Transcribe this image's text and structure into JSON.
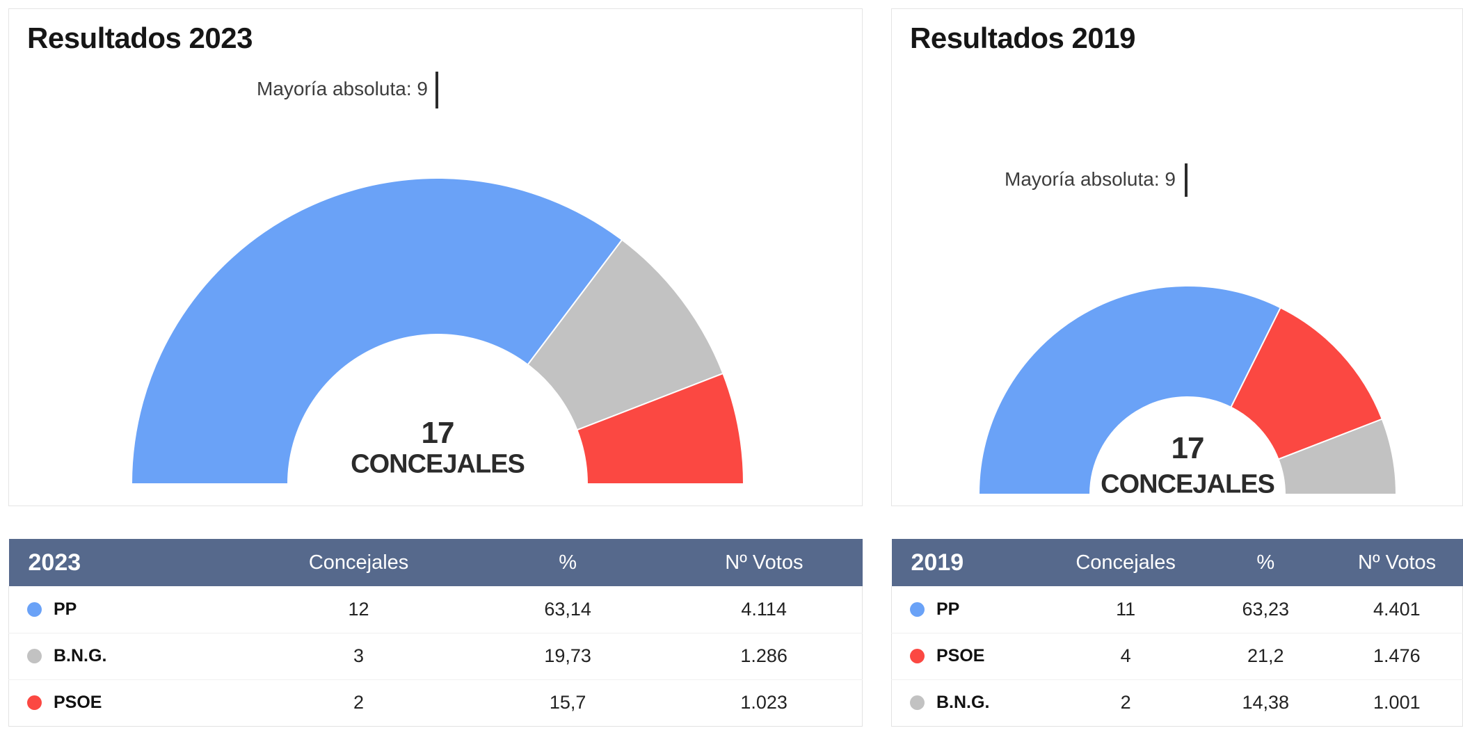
{
  "colors": {
    "pp": "#6aa2f7",
    "psoe": "#fb4842",
    "bng": "#c2c2c2",
    "table_header": "#56698c"
  },
  "panel_2023": {
    "title": "Resultados 2023",
    "majority_label": "Mayoría absoluta: 9",
    "center_value": "17",
    "center_label": "CONCEJALES",
    "table": {
      "year": "2023",
      "col_concejales": "Concejales",
      "col_pct": "%",
      "col_votos": "Nº Votos",
      "rows": [
        {
          "party": "PP",
          "color": "#6aa2f7",
          "concejales": "12",
          "pct": "63,14",
          "votos": "4.114"
        },
        {
          "party": "B.N.G.",
          "color": "#c2c2c2",
          "concejales": "3",
          "pct": "19,73",
          "votos": "1.286"
        },
        {
          "party": "PSOE",
          "color": "#fb4842",
          "concejales": "2",
          "pct": "15,7",
          "votos": "1.023"
        }
      ]
    }
  },
  "panel_2019": {
    "title": "Resultados 2019",
    "majority_label": "Mayoría absoluta: 9",
    "center_value": "17",
    "center_label": "CONCEJALES",
    "table": {
      "year": "2019",
      "col_concejales": "Concejales",
      "col_pct": "%",
      "col_votos": "Nº Votos",
      "rows": [
        {
          "party": "PP",
          "color": "#6aa2f7",
          "concejales": "11",
          "pct": "63,23",
          "votos": "4.401"
        },
        {
          "party": "PSOE",
          "color": "#fb4842",
          "concejales": "4",
          "pct": "21,2",
          "votos": "1.476"
        },
        {
          "party": "B.N.G.",
          "color": "#c2c2c2",
          "concejales": "2",
          "pct": "14,38",
          "votos": "1.001"
        }
      ]
    }
  },
  "chart_data": [
    {
      "type": "pie",
      "variant": "half-donut-gauge",
      "title": "Resultados 2023",
      "total_seats": 17,
      "center_text": "17 CONCEJALES",
      "majority_seats": 9,
      "majority_annotation": "Mayoría absoluta: 9",
      "series": [
        {
          "name": "PP",
          "seats": 12,
          "pct": 63.14,
          "votes": 4114,
          "color": "#6aa2f7"
        },
        {
          "name": "B.N.G.",
          "seats": 3,
          "pct": 19.73,
          "votes": 1286,
          "color": "#c2c2c2"
        },
        {
          "name": "PSOE",
          "seats": 2,
          "pct": 15.7,
          "votes": 1023,
          "color": "#fb4842"
        }
      ]
    },
    {
      "type": "pie",
      "variant": "half-donut-gauge",
      "title": "Resultados 2019",
      "total_seats": 17,
      "center_text": "17 CONCEJALES",
      "majority_seats": 9,
      "majority_annotation": "Mayoría absoluta: 9",
      "series": [
        {
          "name": "PP",
          "seats": 11,
          "pct": 63.23,
          "votes": 4401,
          "color": "#6aa2f7"
        },
        {
          "name": "PSOE",
          "seats": 4,
          "pct": 21.2,
          "votes": 1476,
          "color": "#fb4842"
        },
        {
          "name": "B.N.G.",
          "seats": 2,
          "pct": 14.38,
          "votes": 1001,
          "color": "#c2c2c2"
        }
      ]
    }
  ]
}
